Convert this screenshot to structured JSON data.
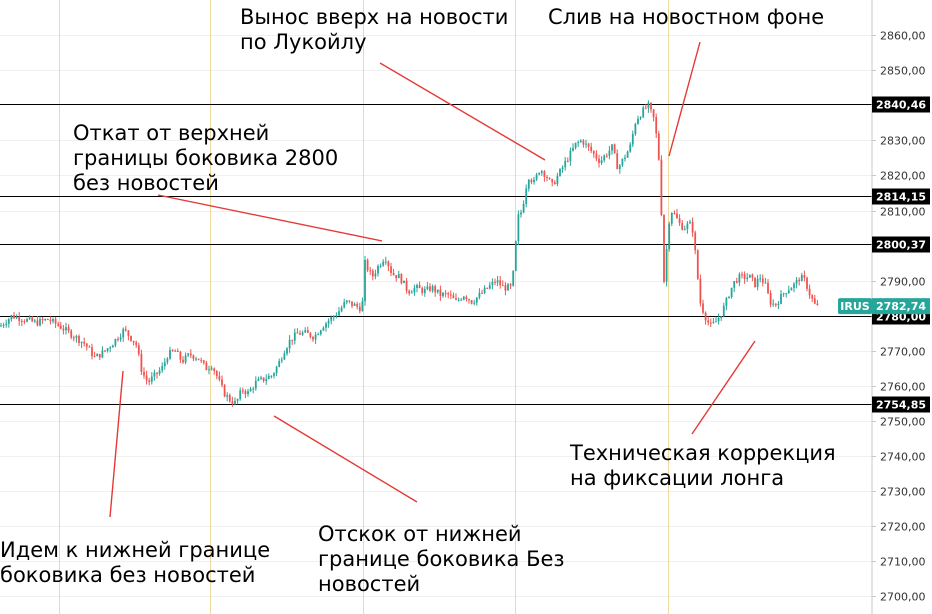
{
  "chart_data": {
    "type": "candlestick",
    "symbol": "IRUS",
    "last_price": "2782,74",
    "ylim": [
      2695,
      2870
    ],
    "y_ticks": [
      "2860,00",
      "2850,00",
      "2830,00",
      "2820,00",
      "2810,00",
      "2790,00",
      "2770,00",
      "2760,00",
      "2750,00",
      "2740,00",
      "2730,00",
      "2720,00",
      "2710,00",
      "2700,00"
    ],
    "y_tick_values": [
      2860,
      2850,
      2830,
      2820,
      2810,
      2790,
      2770,
      2760,
      2750,
      2740,
      2730,
      2720,
      2710,
      2700
    ],
    "levels": [
      {
        "value": 2840.46,
        "label": "2840,46"
      },
      {
        "value": 2814.15,
        "label": "2814,15"
      },
      {
        "value": 2800.37,
        "label": "2800,37"
      },
      {
        "value": 2780.0,
        "label": "2780,00"
      },
      {
        "value": 2754.85,
        "label": "2754,85"
      }
    ],
    "colors": {
      "up": "#26a69a",
      "down": "#ef5350",
      "session": "#f0d9a0",
      "price_tag": "#26a69a"
    },
    "series": [
      {
        "name": "IRUS",
        "path": [
          [
            0,
            2777
          ],
          [
            12,
            2780
          ],
          [
            24,
            2779
          ],
          [
            36,
            2778
          ],
          [
            48,
            2779
          ],
          [
            60,
            2777
          ],
          [
            65,
            2776
          ],
          [
            75,
            2774
          ],
          [
            85,
            2772
          ],
          [
            95,
            2768
          ],
          [
            105,
            2770
          ],
          [
            112,
            2772
          ],
          [
            118,
            2774
          ],
          [
            124,
            2776
          ],
          [
            130,
            2774
          ],
          [
            136,
            2772
          ],
          [
            142,
            2764
          ],
          [
            148,
            2761
          ],
          [
            155,
            2763
          ],
          [
            162,
            2765
          ],
          [
            168,
            2769
          ],
          [
            175,
            2770
          ],
          [
            182,
            2767
          ],
          [
            190,
            2769
          ],
          [
            198,
            2768
          ],
          [
            206,
            2765
          ],
          [
            212,
            2766
          ],
          [
            218,
            2762
          ],
          [
            224,
            2758
          ],
          [
            230,
            2756
          ],
          [
            236,
            2755
          ],
          [
            242,
            2759
          ],
          [
            248,
            2758
          ],
          [
            256,
            2761
          ],
          [
            264,
            2762
          ],
          [
            272,
            2763
          ],
          [
            278,
            2766
          ],
          [
            284,
            2770
          ],
          [
            290,
            2773
          ],
          [
            298,
            2775
          ],
          [
            306,
            2775
          ],
          [
            314,
            2774
          ],
          [
            322,
            2777
          ],
          [
            330,
            2779
          ],
          [
            338,
            2781
          ],
          [
            346,
            2784
          ],
          [
            354,
            2783
          ],
          [
            362,
            2782
          ],
          [
            365,
            2795
          ],
          [
            372,
            2791
          ],
          [
            378,
            2794
          ],
          [
            385,
            2797
          ],
          [
            392,
            2792
          ],
          [
            400,
            2791
          ],
          [
            408,
            2787
          ],
          [
            416,
            2788
          ],
          [
            424,
            2787
          ],
          [
            432,
            2788
          ],
          [
            440,
            2786
          ],
          [
            448,
            2786
          ],
          [
            456,
            2784
          ],
          [
            464,
            2786
          ],
          [
            472,
            2784
          ],
          [
            480,
            2786
          ],
          [
            488,
            2788
          ],
          [
            496,
            2790
          ],
          [
            504,
            2788
          ],
          [
            512,
            2788
          ],
          [
            518,
            2808
          ],
          [
            522,
            2810
          ],
          [
            528,
            2820
          ],
          [
            534,
            2818
          ],
          [
            540,
            2822
          ],
          [
            546,
            2820
          ],
          [
            552,
            2817
          ],
          [
            558,
            2820
          ],
          [
            564,
            2823
          ],
          [
            570,
            2826
          ],
          [
            576,
            2829
          ],
          [
            582,
            2830
          ],
          [
            588,
            2828
          ],
          [
            594,
            2826
          ],
          [
            600,
            2824
          ],
          [
            606,
            2826
          ],
          [
            612,
            2828
          ],
          [
            618,
            2822
          ],
          [
            624,
            2825
          ],
          [
            630,
            2828
          ],
          [
            636,
            2836
          ],
          [
            642,
            2838
          ],
          [
            648,
            2840
          ],
          [
            654,
            2836
          ],
          [
            658,
            2828
          ],
          [
            660,
            2820
          ],
          [
            662,
            2805
          ],
          [
            664,
            2790
          ],
          [
            666,
            2796
          ],
          [
            668,
            2806
          ],
          [
            672,
            2810
          ],
          [
            676,
            2808
          ],
          [
            680,
            2806
          ],
          [
            684,
            2805
          ],
          [
            688,
            2806
          ],
          [
            692,
            2806
          ],
          [
            696,
            2796
          ],
          [
            700,
            2784
          ],
          [
            705,
            2780
          ],
          [
            710,
            2777
          ],
          [
            715,
            2778
          ],
          [
            720,
            2780
          ],
          [
            725,
            2783
          ],
          [
            730,
            2787
          ],
          [
            735,
            2790
          ],
          [
            740,
            2791
          ],
          [
            745,
            2791
          ],
          [
            750,
            2791
          ],
          [
            755,
            2789
          ],
          [
            760,
            2791
          ],
          [
            765,
            2789
          ],
          [
            770,
            2784
          ],
          [
            775,
            2783
          ],
          [
            780,
            2785
          ],
          [
            785,
            2787
          ],
          [
            790,
            2788
          ],
          [
            795,
            2789
          ],
          [
            800,
            2791
          ],
          [
            805,
            2790
          ],
          [
            810,
            2786
          ],
          [
            815,
            2783
          ],
          [
            820,
            2782
          ]
        ]
      }
    ],
    "annotations": [
      {
        "id": "spike-up",
        "lines": [
          "Вынос вверх на новости",
          "по Лукойлу"
        ]
      },
      {
        "id": "dump",
        "lines": [
          "Слив на новостном фоне"
        ]
      },
      {
        "id": "pullback",
        "lines": [
          "Откат от верхней",
          "границы боковика 2800",
          "без новостей"
        ]
      },
      {
        "id": "correction",
        "lines": [
          "Техническая коррекция",
          "на фиксации лонга"
        ]
      },
      {
        "id": "to-lower",
        "lines": [
          "Идем к нижней границе",
          "боковика без новостей"
        ]
      },
      {
        "id": "bounce",
        "lines": [
          "Отскок от нижней",
          "границе боковика Без",
          "новостей"
        ]
      }
    ]
  }
}
